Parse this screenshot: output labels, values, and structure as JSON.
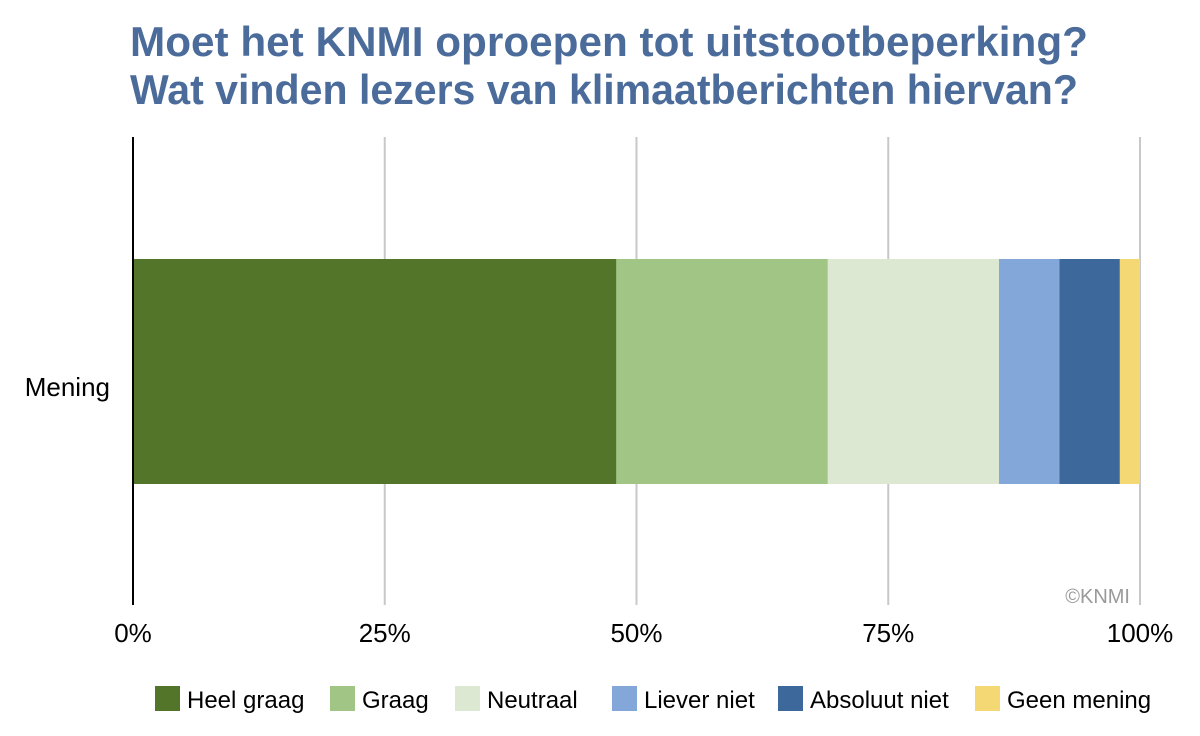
{
  "chart_data": {
    "type": "bar",
    "orientation": "horizontal",
    "stacked": true,
    "normalized": true,
    "title_lines": [
      "Moet het KNMI oproepen tot uitstootbeperking?",
      "Wat vinden lezers van klimaatberichten hiervan?"
    ],
    "categories": [
      "Mening"
    ],
    "series": [
      {
        "name": "Heel graag",
        "values": [
          48
        ],
        "color": "#52752a"
      },
      {
        "name": "Graag",
        "values": [
          21
        ],
        "color": "#a1c584"
      },
      {
        "name": "Neutraal",
        "values": [
          17
        ],
        "color": "#dde8d3"
      },
      {
        "name": "Liever niet",
        "values": [
          6
        ],
        "color": "#84a7d9"
      },
      {
        "name": "Absoluut niet",
        "values": [
          6
        ],
        "color": "#3c689b"
      },
      {
        "name": "Geen mening",
        "values": [
          2
        ],
        "color": "#f3d874"
      }
    ],
    "xlim": [
      0,
      100
    ],
    "xticks": [
      0,
      25,
      50,
      75,
      100
    ],
    "xtick_labels": [
      "0%",
      "25%",
      "50%",
      "75%",
      "100%"
    ],
    "xlabel": "",
    "ylabel": "",
    "grid": true,
    "legend": "bottom",
    "watermark": "©KNMI"
  },
  "colors": {
    "title": "#4b6c9b",
    "grid": "#c8c8c8",
    "axis": "#000000",
    "text": "#000000",
    "watermark": "#9a9a9a"
  }
}
